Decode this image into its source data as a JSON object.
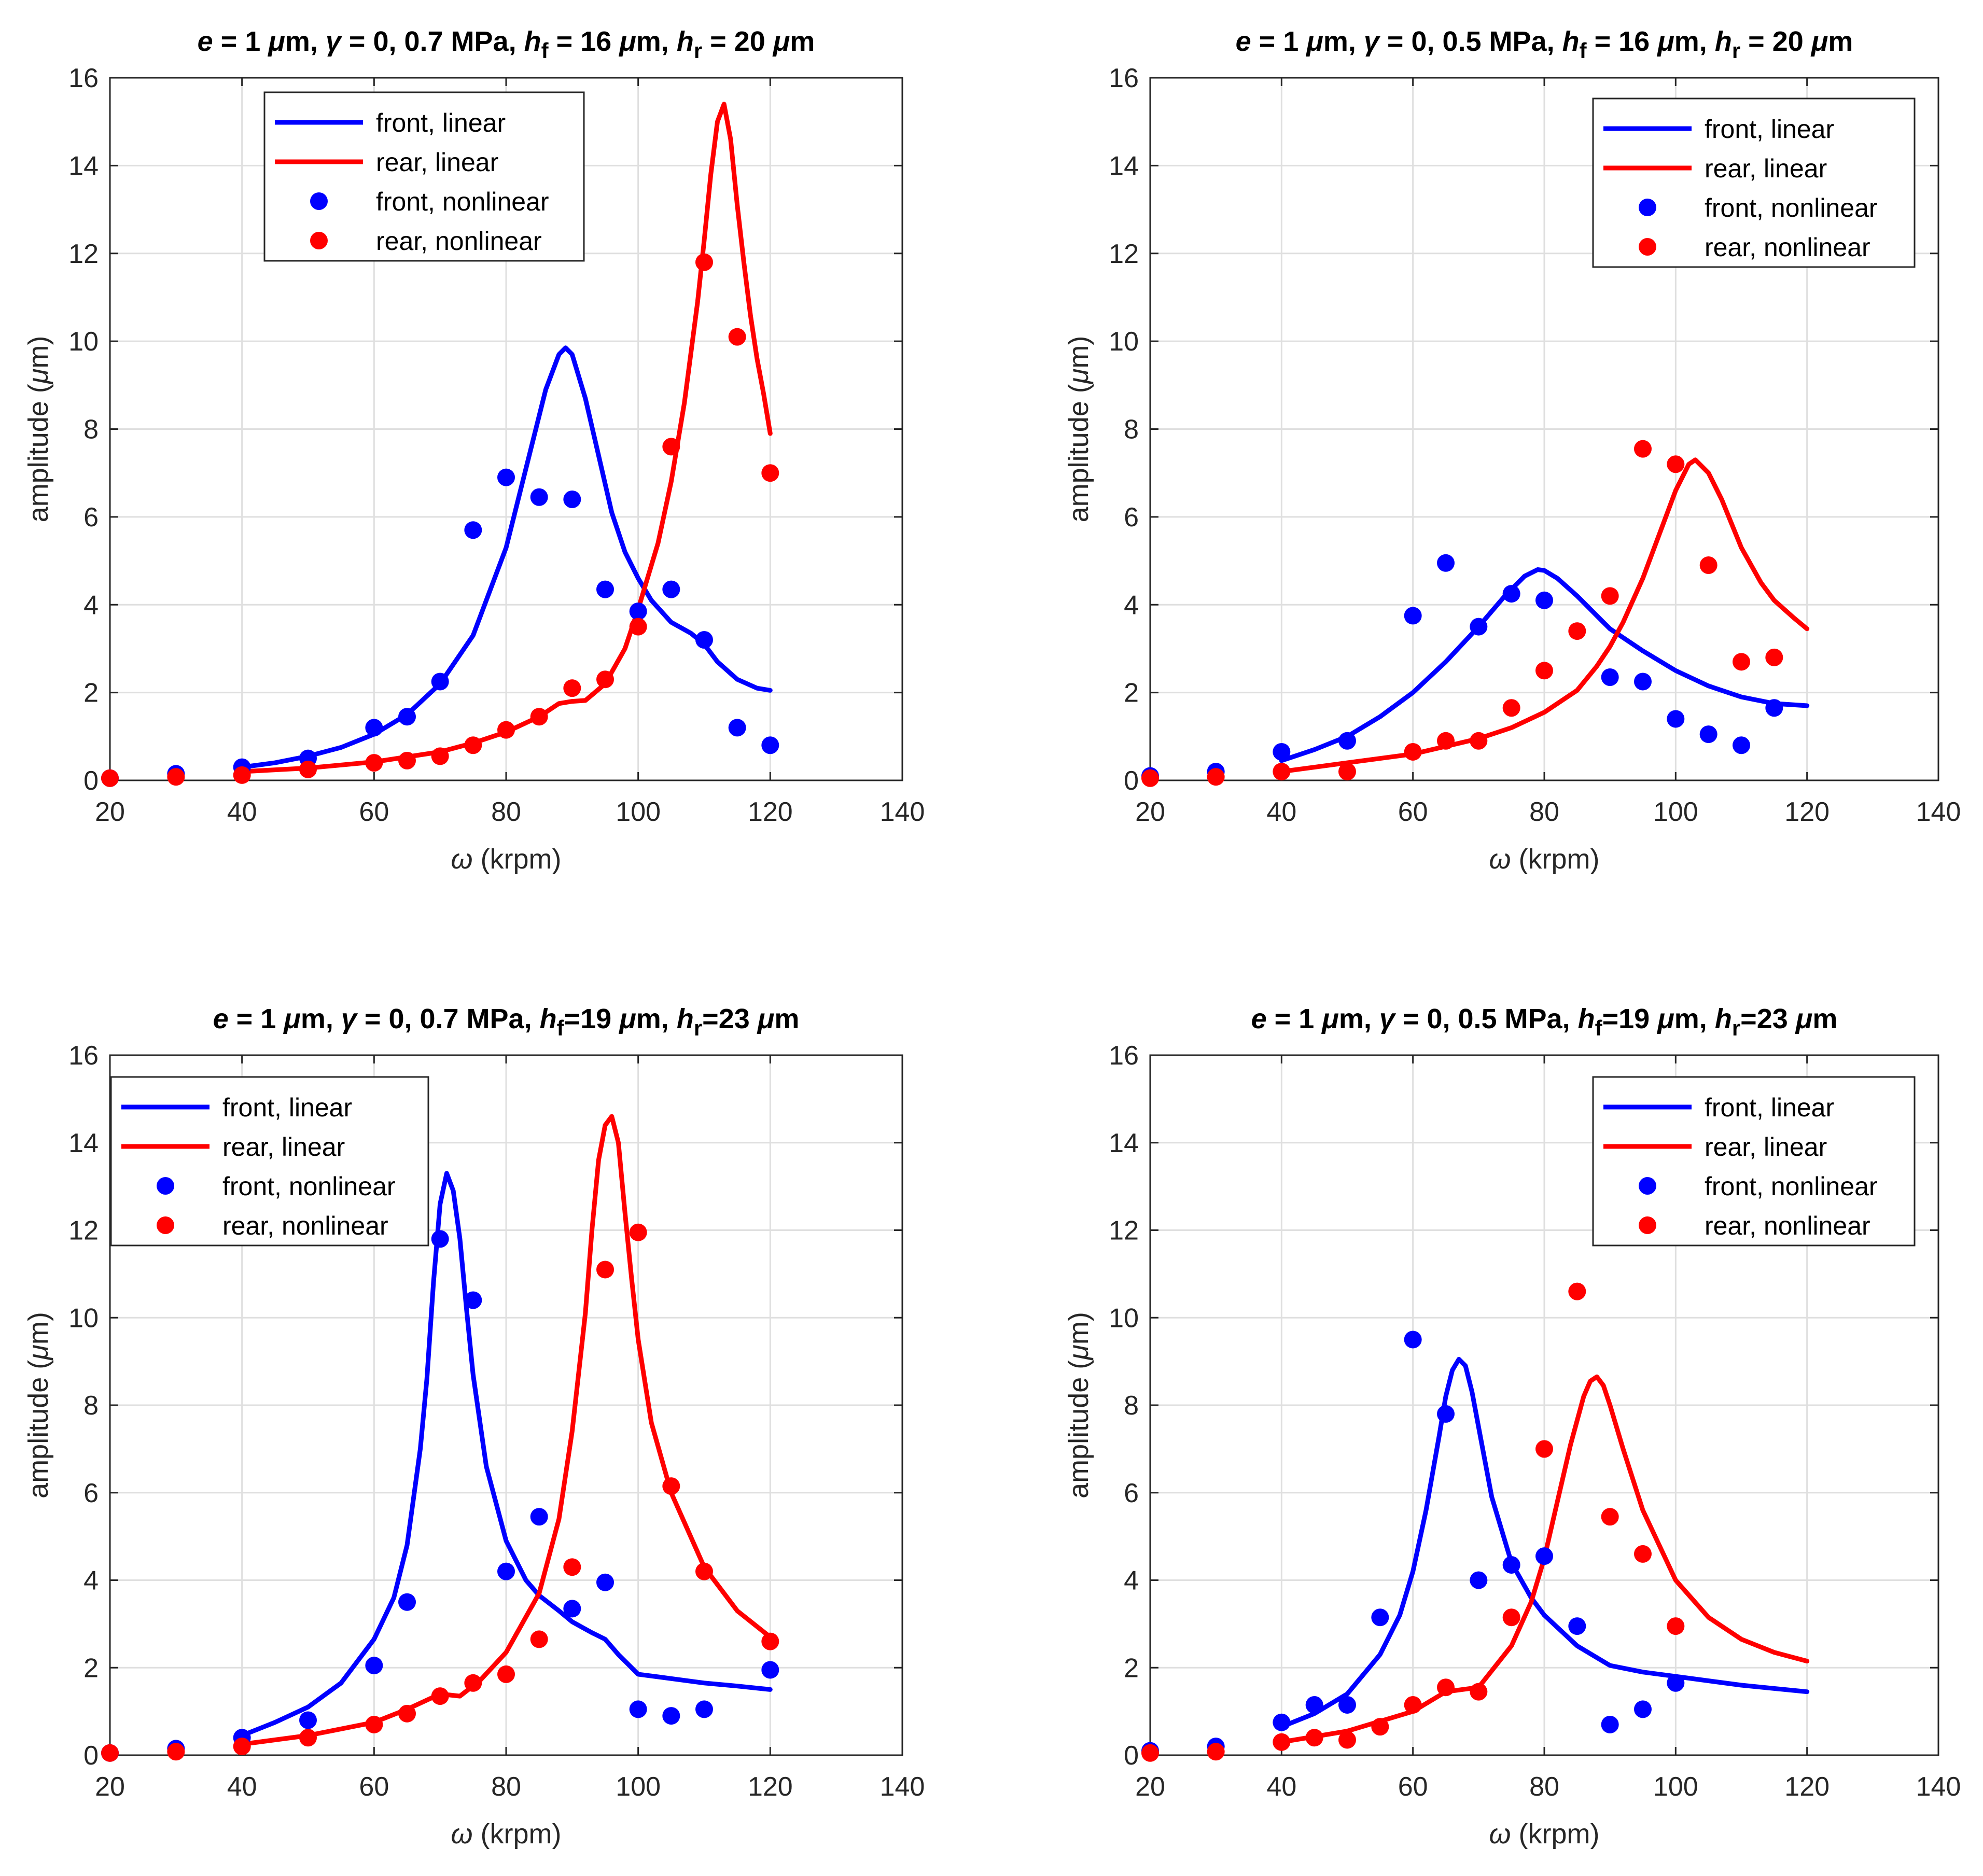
{
  "colors": {
    "front": "#0000ff",
    "rear": "#ff0000",
    "grid": "#dfdfdf",
    "axis": "#262626"
  },
  "legend_labels": [
    "front, linear",
    "rear, linear",
    "front, nonlinear",
    "rear, nonlinear"
  ],
  "chart_data": [
    {
      "type": "line",
      "title_parts": [
        "e",
        " = 1 ",
        "μ",
        "m, ",
        "γ",
        " = 0, 0.7 MPa,  ",
        "h",
        "f",
        " = 16 ",
        "μ",
        "m,  ",
        "h",
        "r",
        " = 20 ",
        "μ",
        "m"
      ],
      "xlabel_parts": [
        "ω",
        " (krpm)"
      ],
      "ylabel_parts": [
        "amplitude (",
        "μ",
        "m)"
      ],
      "xlim": [
        20,
        140
      ],
      "ylim": [
        0,
        16
      ],
      "xticks": [
        20,
        40,
        60,
        80,
        100,
        120,
        140
      ],
      "yticks": [
        0,
        2,
        4,
        6,
        8,
        10,
        12,
        14,
        16
      ],
      "grid": true,
      "legend_location": "top-center",
      "series": [
        {
          "name": "front, linear",
          "kind": "line",
          "color": "#0000ff",
          "x": [
            40,
            45,
            50,
            55,
            60,
            65,
            70,
            75,
            80,
            83,
            86,
            88,
            89,
            90,
            92,
            94,
            96,
            98,
            100,
            102,
            105,
            108,
            110,
            112,
            115,
            118,
            120
          ],
          "y": [
            0.3,
            0.4,
            0.55,
            0.75,
            1.05,
            1.5,
            2.2,
            3.3,
            5.3,
            7.1,
            8.9,
            9.7,
            9.85,
            9.7,
            8.7,
            7.4,
            6.1,
            5.2,
            4.6,
            4.1,
            3.6,
            3.35,
            3.1,
            2.7,
            2.3,
            2.1,
            2.05
          ]
        },
        {
          "name": "rear, linear",
          "kind": "line",
          "color": "#ff0000",
          "x": [
            40,
            50,
            60,
            70,
            75,
            80,
            85,
            88,
            90,
            92,
            95,
            98,
            100,
            103,
            105,
            107,
            109,
            110,
            111,
            112,
            113,
            114,
            115,
            116,
            117,
            118,
            119,
            120
          ],
          "y": [
            0.2,
            0.28,
            0.42,
            0.65,
            0.85,
            1.1,
            1.45,
            1.75,
            1.8,
            1.82,
            2.2,
            3.0,
            3.9,
            5.4,
            6.8,
            8.6,
            10.9,
            12.3,
            13.8,
            15.0,
            15.4,
            14.6,
            13.1,
            11.8,
            10.6,
            9.6,
            8.8,
            7.9
          ]
        },
        {
          "name": "front, nonlinear",
          "kind": "scatter",
          "color": "#0000ff",
          "x": [
            20,
            30,
            40,
            50,
            60,
            65,
            70,
            75,
            80,
            85,
            90,
            95,
            100,
            105,
            110,
            115,
            120
          ],
          "y": [
            0.05,
            0.15,
            0.3,
            0.5,
            1.2,
            1.45,
            2.25,
            5.7,
            6.9,
            6.45,
            6.4,
            4.35,
            3.85,
            4.35,
            3.2,
            1.2,
            0.8
          ]
        },
        {
          "name": "rear, nonlinear",
          "kind": "scatter",
          "color": "#ff0000",
          "x": [
            20,
            30,
            40,
            50,
            60,
            65,
            70,
            75,
            80,
            85,
            90,
            95,
            100,
            105,
            110,
            115,
            120
          ],
          "y": [
            0.05,
            0.08,
            0.12,
            0.25,
            0.4,
            0.45,
            0.55,
            0.8,
            1.15,
            1.45,
            2.1,
            2.3,
            3.5,
            7.6,
            11.8,
            10.1,
            7.0
          ]
        }
      ]
    },
    {
      "type": "line",
      "title_parts": [
        "e",
        " = 1 ",
        "μ",
        "m, ",
        "γ",
        " = 0, 0.5 MPa,  ",
        "h",
        "f",
        " = 16 ",
        "μ",
        "m,  ",
        "h",
        "r",
        " = 20 ",
        "μ",
        "m"
      ],
      "xlabel_parts": [
        "ω",
        " (krpm)"
      ],
      "ylabel_parts": [
        "amplitude (",
        "μ",
        "m)"
      ],
      "xlim": [
        20,
        140
      ],
      "ylim": [
        0,
        16
      ],
      "xticks": [
        20,
        40,
        60,
        80,
        100,
        120,
        140
      ],
      "yticks": [
        0,
        2,
        4,
        6,
        8,
        10,
        12,
        14,
        16
      ],
      "grid": true,
      "legend_location": "top-right",
      "series": [
        {
          "name": "front, linear",
          "kind": "line",
          "color": "#0000ff",
          "x": [
            40,
            45,
            50,
            55,
            60,
            65,
            70,
            74,
            77,
            79,
            80,
            82,
            85,
            88,
            90,
            95,
            100,
            105,
            110,
            115,
            120
          ],
          "y": [
            0.45,
            0.7,
            1.0,
            1.45,
            2.0,
            2.7,
            3.5,
            4.2,
            4.65,
            4.8,
            4.78,
            4.6,
            4.2,
            3.75,
            3.45,
            2.95,
            2.5,
            2.15,
            1.9,
            1.75,
            1.7
          ]
        },
        {
          "name": "rear, linear",
          "kind": "line",
          "color": "#ff0000",
          "x": [
            40,
            50,
            60,
            70,
            75,
            80,
            85,
            88,
            90,
            92,
            95,
            98,
            100,
            102,
            103,
            105,
            107,
            110,
            113,
            115,
            118,
            120
          ],
          "y": [
            0.2,
            0.4,
            0.6,
            0.95,
            1.2,
            1.55,
            2.05,
            2.6,
            3.05,
            3.6,
            4.6,
            5.8,
            6.6,
            7.2,
            7.3,
            7.0,
            6.4,
            5.3,
            4.5,
            4.1,
            3.7,
            3.45
          ]
        },
        {
          "name": "front, nonlinear",
          "kind": "scatter",
          "color": "#0000ff",
          "x": [
            20,
            30,
            40,
            50,
            60,
            65,
            70,
            75,
            80,
            90,
            95,
            100,
            105,
            110,
            115
          ],
          "y": [
            0.1,
            0.2,
            0.65,
            0.9,
            3.75,
            4.95,
            3.5,
            4.25,
            4.1,
            2.35,
            2.25,
            1.4,
            1.05,
            0.8,
            1.65
          ]
        },
        {
          "name": "rear, nonlinear",
          "kind": "scatter",
          "color": "#ff0000",
          "x": [
            20,
            30,
            40,
            50,
            60,
            65,
            70,
            75,
            80,
            85,
            90,
            95,
            100,
            105,
            110,
            115
          ],
          "y": [
            0.05,
            0.08,
            0.2,
            0.2,
            0.65,
            0.9,
            0.9,
            1.65,
            2.5,
            3.4,
            4.2,
            7.55,
            7.2,
            4.9,
            2.7,
            2.8
          ]
        }
      ]
    },
    {
      "type": "line",
      "title_parts": [
        "e",
        " = 1 ",
        "μ",
        "m, ",
        "γ",
        " = 0, 0.7 MPa,  ",
        "h",
        "f",
        "=19 ",
        "μ",
        "m,  ",
        "h",
        "r",
        "=23 ",
        "μ",
        "m"
      ],
      "xlabel_parts": [
        "ω",
        " (krpm)"
      ],
      "ylabel_parts": [
        "amplitude (",
        "μ",
        "m)"
      ],
      "xlim": [
        20,
        140
      ],
      "ylim": [
        0,
        16
      ],
      "xticks": [
        20,
        40,
        60,
        80,
        100,
        120,
        140
      ],
      "yticks": [
        0,
        2,
        4,
        6,
        8,
        10,
        12,
        14,
        16
      ],
      "grid": true,
      "legend_location": "top-left",
      "series": [
        {
          "name": "front, linear",
          "kind": "line",
          "color": "#0000ff",
          "x": [
            40,
            45,
            50,
            55,
            60,
            63,
            65,
            67,
            68,
            69,
            70,
            71,
            72,
            73,
            74,
            75,
            77,
            80,
            83,
            85,
            88,
            90,
            93,
            95,
            97,
            100,
            105,
            110,
            115,
            120
          ],
          "y": [
            0.45,
            0.75,
            1.1,
            1.65,
            2.65,
            3.6,
            4.8,
            7.0,
            8.6,
            10.8,
            12.6,
            13.3,
            12.9,
            11.8,
            10.2,
            8.7,
            6.6,
            4.9,
            4.0,
            3.65,
            3.3,
            3.05,
            2.8,
            2.65,
            2.3,
            1.85,
            1.75,
            1.65,
            1.58,
            1.5
          ]
        },
        {
          "name": "rear, linear",
          "kind": "line",
          "color": "#ff0000",
          "x": [
            40,
            50,
            60,
            65,
            70,
            73,
            76,
            80,
            85,
            88,
            90,
            92,
            93,
            94,
            95,
            96,
            97,
            98,
            99,
            100,
            102,
            105,
            110,
            115,
            120
          ],
          "y": [
            0.25,
            0.45,
            0.75,
            1.05,
            1.4,
            1.35,
            1.7,
            2.35,
            3.7,
            5.4,
            7.4,
            10.1,
            12.0,
            13.6,
            14.4,
            14.6,
            14.0,
            12.4,
            10.9,
            9.5,
            7.6,
            6.0,
            4.3,
            3.3,
            2.7
          ]
        },
        {
          "name": "front, nonlinear",
          "kind": "scatter",
          "color": "#0000ff",
          "x": [
            20,
            30,
            40,
            50,
            60,
            65,
            70,
            75,
            80,
            85,
            90,
            95,
            100,
            105,
            110,
            120
          ],
          "y": [
            0.05,
            0.15,
            0.4,
            0.8,
            2.05,
            3.5,
            11.8,
            10.4,
            4.2,
            5.45,
            3.35,
            3.95,
            1.05,
            0.9,
            1.05,
            1.95
          ]
        },
        {
          "name": "rear, nonlinear",
          "kind": "scatter",
          "color": "#ff0000",
          "x": [
            20,
            30,
            40,
            50,
            60,
            65,
            70,
            75,
            80,
            85,
            90,
            95,
            100,
            105,
            110,
            120
          ],
          "y": [
            0.05,
            0.08,
            0.2,
            0.4,
            0.7,
            0.95,
            1.35,
            1.65,
            1.85,
            2.65,
            4.3,
            11.1,
            11.95,
            6.15,
            4.2,
            2.6
          ]
        }
      ]
    },
    {
      "type": "line",
      "title_parts": [
        "e",
        " = 1 ",
        "μ",
        "m, ",
        "γ",
        " = 0, 0.5 MPa,  ",
        "h",
        "f",
        "=19 ",
        "μ",
        "m,  ",
        "h",
        "r",
        "=23 ",
        "μ",
        "m"
      ],
      "xlabel_parts": [
        "ω",
        " (krpm)"
      ],
      "ylabel_parts": [
        "amplitude (",
        "μ",
        "m)"
      ],
      "xlim": [
        20,
        140
      ],
      "ylim": [
        0,
        16
      ],
      "xticks": [
        20,
        40,
        60,
        80,
        100,
        120,
        140
      ],
      "yticks": [
        0,
        2,
        4,
        6,
        8,
        10,
        12,
        14,
        16
      ],
      "grid": true,
      "legend_location": "top-right",
      "series": [
        {
          "name": "front, linear",
          "kind": "line",
          "color": "#0000ff",
          "x": [
            40,
            45,
            50,
            55,
            58,
            60,
            62,
            64,
            65,
            66,
            67,
            68,
            69,
            70,
            72,
            75,
            78,
            80,
            85,
            90,
            95,
            100,
            110,
            120
          ],
          "y": [
            0.65,
            0.95,
            1.4,
            2.3,
            3.2,
            4.2,
            5.6,
            7.3,
            8.2,
            8.8,
            9.05,
            8.9,
            8.3,
            7.5,
            5.9,
            4.4,
            3.6,
            3.2,
            2.5,
            2.05,
            1.9,
            1.8,
            1.6,
            1.45
          ]
        },
        {
          "name": "rear, linear",
          "kind": "line",
          "color": "#ff0000",
          "x": [
            40,
            50,
            60,
            65,
            70,
            75,
            78,
            80,
            82,
            84,
            86,
            87,
            88,
            89,
            90,
            92,
            95,
            100,
            105,
            110,
            115,
            120
          ],
          "y": [
            0.3,
            0.55,
            1.0,
            1.45,
            1.55,
            2.5,
            3.5,
            4.5,
            5.8,
            7.1,
            8.2,
            8.55,
            8.65,
            8.45,
            8.0,
            7.0,
            5.6,
            4.0,
            3.15,
            2.65,
            2.35,
            2.15
          ]
        },
        {
          "name": "front, nonlinear",
          "kind": "scatter",
          "color": "#0000ff",
          "x": [
            20,
            30,
            40,
            45,
            50,
            55,
            60,
            65,
            70,
            75,
            80,
            85,
            90,
            95,
            100
          ],
          "y": [
            0.1,
            0.2,
            0.75,
            1.15,
            1.15,
            3.15,
            9.5,
            7.8,
            4.0,
            4.35,
            4.55,
            2.95,
            0.7,
            1.05,
            1.65
          ]
        },
        {
          "name": "rear, nonlinear",
          "kind": "scatter",
          "color": "#ff0000",
          "x": [
            20,
            30,
            40,
            45,
            50,
            55,
            60,
            65,
            70,
            75,
            80,
            85,
            90,
            95,
            100
          ],
          "y": [
            0.05,
            0.08,
            0.3,
            0.4,
            0.35,
            0.65,
            1.15,
            1.55,
            1.45,
            3.15,
            7.0,
            10.6,
            5.45,
            4.6,
            2.95
          ]
        }
      ]
    }
  ]
}
